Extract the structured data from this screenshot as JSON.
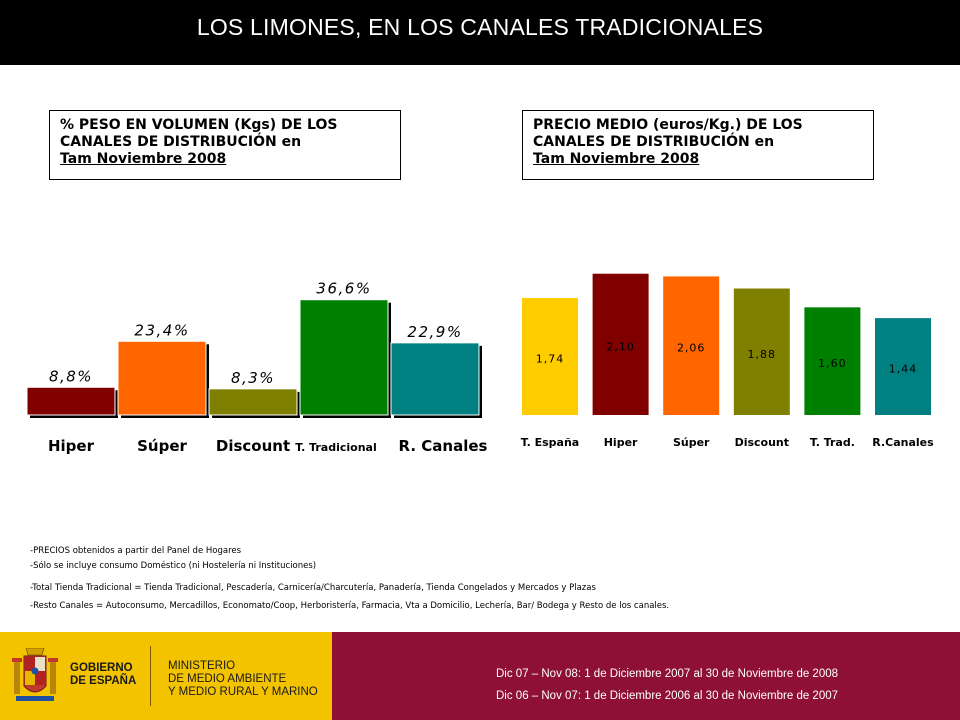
{
  "header": {
    "title": "LOS LIMONES, EN LOS CANALES TRADICIONALES"
  },
  "left_box": {
    "line1": "% PESO EN VOLUMEN (Kgs) DE LOS",
    "line2": "CANALES DE DISTRIBUCIÓN en",
    "line3": "Tam Noviembre 2008"
  },
  "right_box": {
    "line1": "PRECIO MEDIO (euros/Kg.) DE LOS",
    "line2": "CANALES DE DISTRIBUCIÓN en",
    "line3": "Tam Noviembre 2008"
  },
  "chart_data": [
    {
      "type": "bar",
      "categories": [
        "Hiper",
        "Súper",
        "Discount",
        "T. Tradicional",
        "R. Canales"
      ],
      "values": [
        8.8,
        23.4,
        8.3,
        36.6,
        22.9
      ],
      "value_labels": [
        "8,8%",
        "23,4%",
        "8,3%",
        "36,6%",
        "22,9%"
      ],
      "colors": [
        "#800000",
        "#ff6600",
        "#808000",
        "#008000",
        "#008080"
      ],
      "ylim": [
        0,
        40
      ],
      "title": "% PESO EN VOLUMEN (Kgs) DE LOS CANALES DE DISTRIBUCIÓN en Tam Noviembre 2008"
    },
    {
      "type": "bar",
      "categories": [
        "T. España",
        "Hiper",
        "Súper",
        "Discount",
        "T. Trad.",
        "R.Canales"
      ],
      "values": [
        1.74,
        2.1,
        2.06,
        1.88,
        1.6,
        1.44
      ],
      "value_labels": [
        "1,74",
        "2,10",
        "2,06",
        "1,88",
        "1,60",
        "1,44"
      ],
      "colors": [
        "#ffcc00",
        "#800000",
        "#ff6600",
        "#808000",
        "#008000",
        "#008080"
      ],
      "ylim": [
        0,
        2.2
      ],
      "title": "PRECIO MEDIO (euros/Kg.) DE LOS CANALES DE DISTRIBUCIÓN en Tam Noviembre 2008"
    }
  ],
  "notes": [
    "-PRECIOS  obtenidos a partir del Panel de Hogares",
    "-Sólo se incluye consumo Doméstico (ni Hostelería ni Instituciones)",
    "-Total Tienda Tradicional = Tienda Tradicional, Pescadería, Carnicería/Charcutería, Panadería, Tienda Congelados y Mercados y Plazas",
    "-Resto Canales = Autoconsumo, Mercadillos, Economato/Coop, Herboristería, Farmacia, Vta a Domicilio, Lechería, Bar/ Bodega  y Resto de los canales."
  ],
  "footer": {
    "gov_line1": "GOBIERNO",
    "gov_line2": "DE ESPAÑA",
    "ministry_line1": "MINISTERIO",
    "ministry_line2": "DE MEDIO AMBIENTE",
    "ministry_line3": "Y MEDIO RURAL Y MARINO",
    "period1": "Dic 07 – Nov 08: 1 de Diciembre 2007 al 30 de Noviembre de 2008",
    "period2": "Dic 06 – Nov 07: 1 de Diciembre 2006 al 30 de Noviembre de 2007"
  }
}
